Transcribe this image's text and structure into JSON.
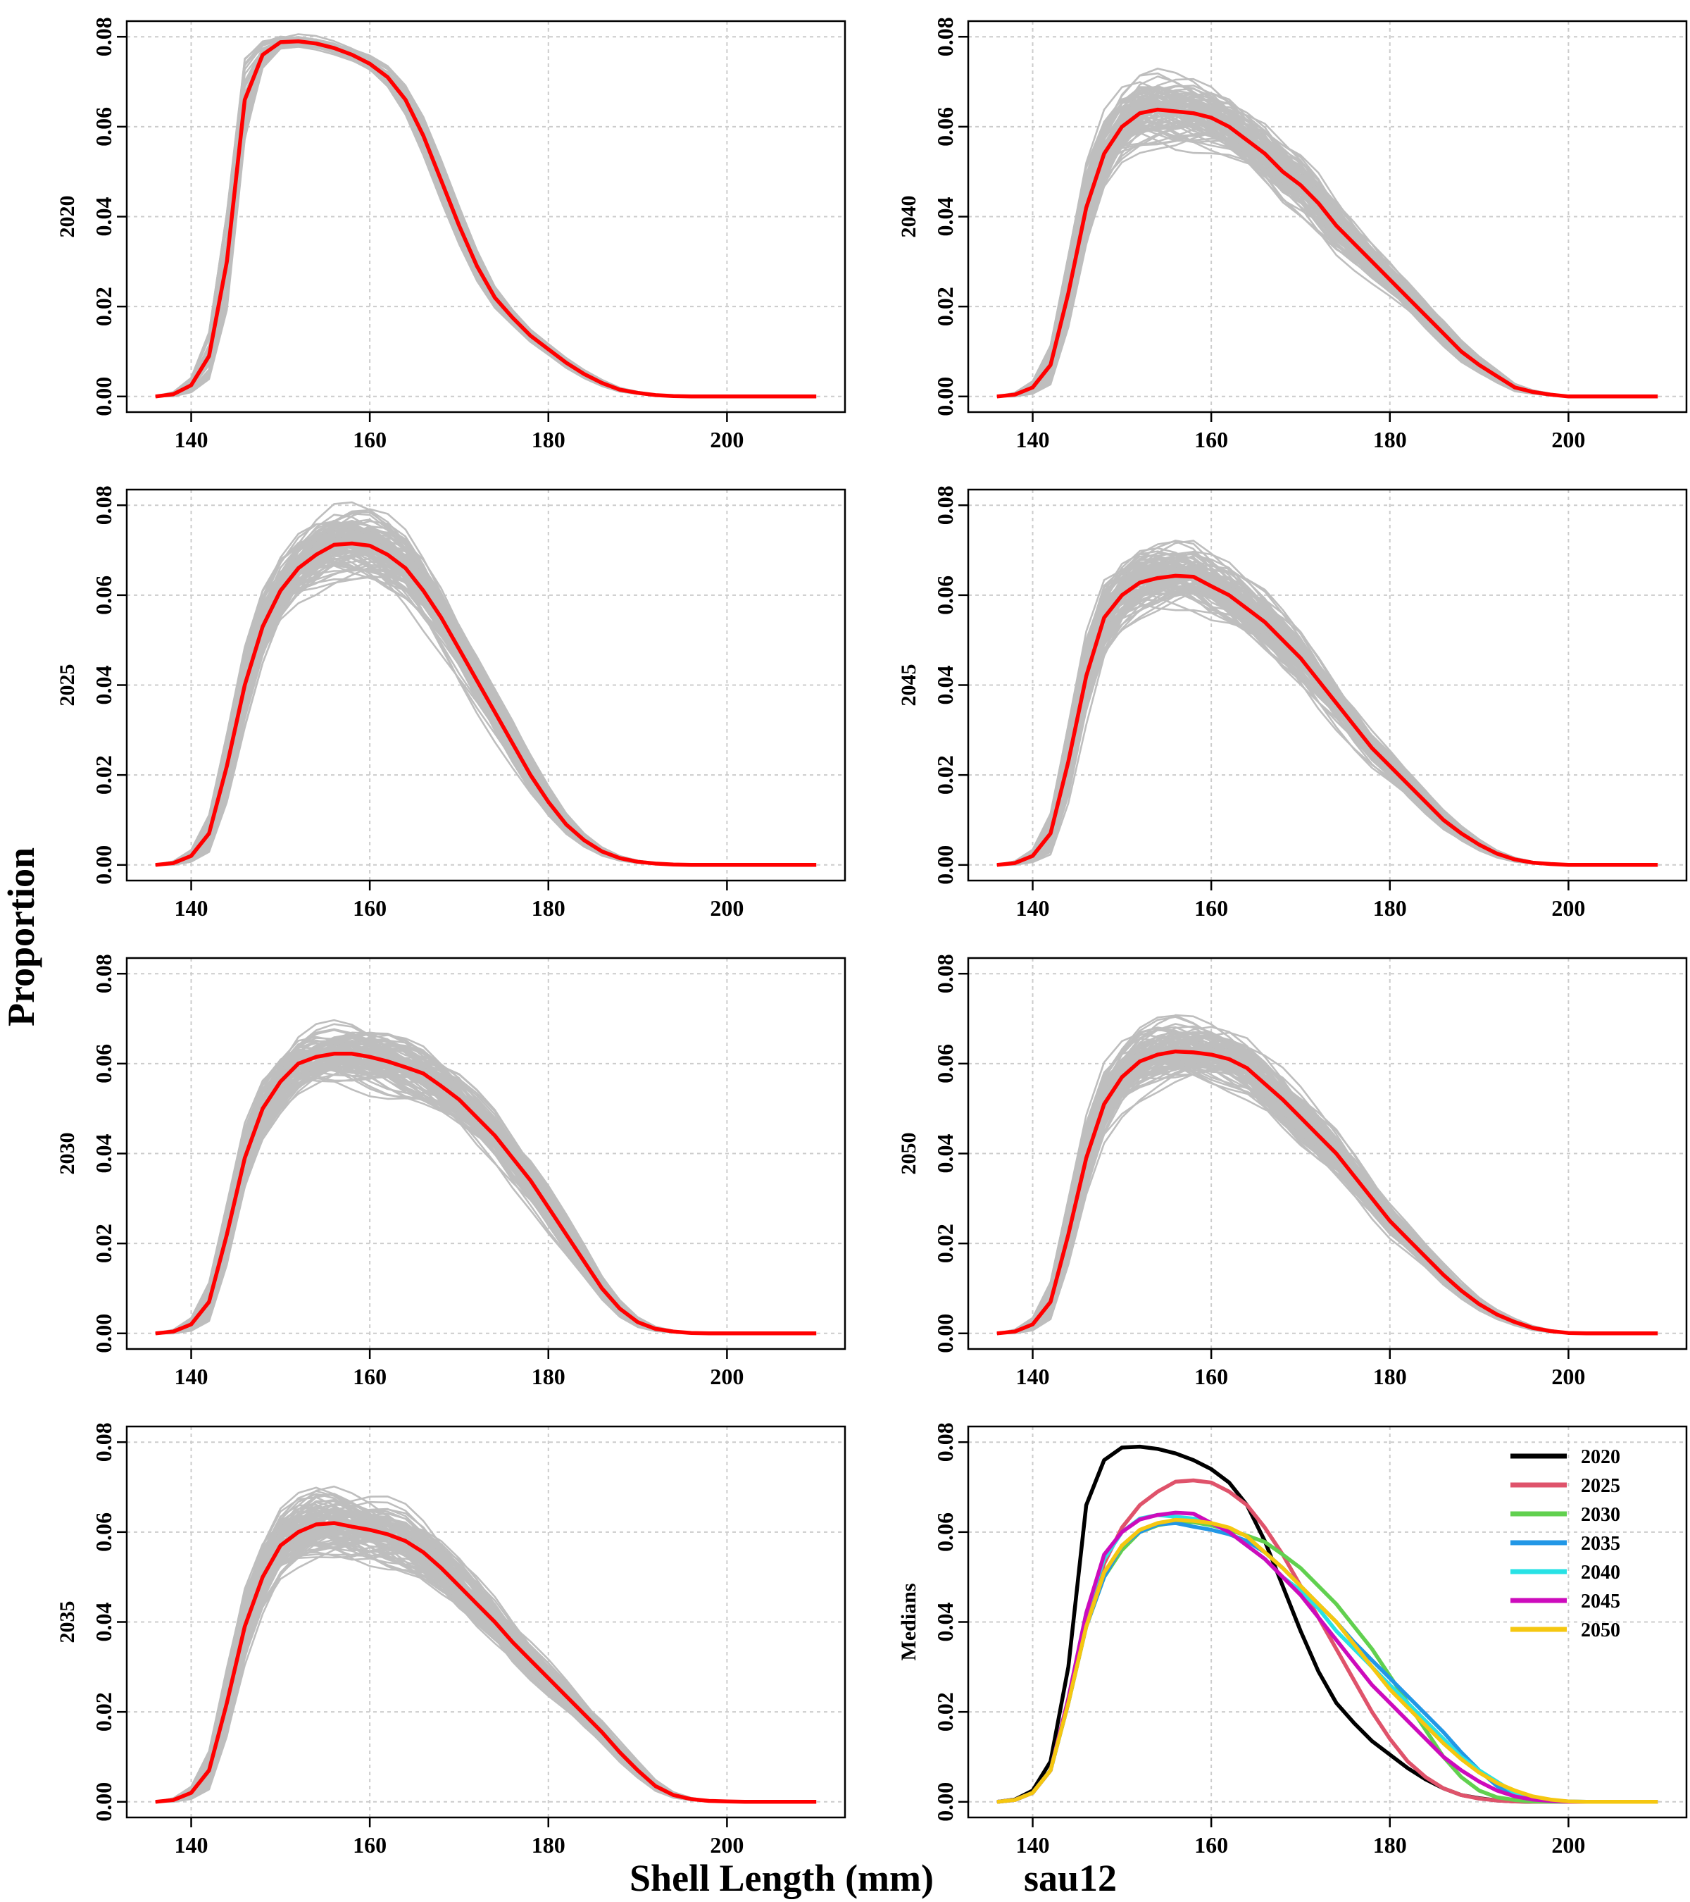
{
  "figure": {
    "y_axis_title": "Proportion",
    "x_axis_title": "Shell Length (mm)",
    "site_label": "sau12"
  },
  "chart_data": [
    {
      "type": "line",
      "title": "",
      "ylabel": "2020",
      "xlabel": "",
      "xlim": [
        136,
        210
      ],
      "ylim": [
        0,
        0.08
      ],
      "xticks": [
        140,
        160,
        180,
        200
      ],
      "yticks": [
        0,
        0.02,
        0.04,
        0.06,
        0.08
      ],
      "ytick_labels": [
        "0.00",
        "0.02",
        "0.04",
        "0.06",
        "0.08"
      ],
      "grid": true,
      "replicate_color": "#bebebe",
      "median_color": "#ff0000",
      "spread": 0.0015,
      "n_replicates": 40,
      "seed": 11,
      "median": {
        "x": [
          136,
          138,
          140,
          142,
          144,
          146,
          148,
          150,
          152,
          154,
          156,
          158,
          160,
          162,
          164,
          166,
          168,
          170,
          172,
          174,
          176,
          178,
          180,
          182,
          184,
          186,
          188,
          190,
          192,
          194,
          196,
          198,
          200,
          202,
          204,
          206,
          208,
          210
        ],
        "y": [
          0,
          0.0005,
          0.0025,
          0.009,
          0.03,
          0.066,
          0.076,
          0.0788,
          0.079,
          0.0785,
          0.0775,
          0.076,
          0.074,
          0.071,
          0.066,
          0.058,
          0.048,
          0.038,
          0.029,
          0.022,
          0.0175,
          0.0135,
          0.0105,
          0.0075,
          0.005,
          0.003,
          0.0015,
          0.0008,
          0.0003,
          0.0001,
          0,
          0,
          0,
          0,
          0,
          0,
          0,
          0
        ]
      }
    },
    {
      "type": "line",
      "title": "",
      "ylabel": "2040",
      "xlabel": "",
      "xlim": [
        136,
        210
      ],
      "ylim": [
        0,
        0.08
      ],
      "xticks": [
        140,
        160,
        180,
        200
      ],
      "yticks": [
        0,
        0.02,
        0.04,
        0.06,
        0.08
      ],
      "ytick_labels": [
        "0.00",
        "0.02",
        "0.04",
        "0.06",
        "0.08"
      ],
      "grid": true,
      "replicate_color": "#bebebe",
      "median_color": "#ff0000",
      "spread": 0.009,
      "n_replicates": 100,
      "seed": 21,
      "median": {
        "x": [
          136,
          138,
          140,
          142,
          144,
          146,
          148,
          150,
          152,
          154,
          156,
          158,
          160,
          162,
          164,
          166,
          168,
          170,
          172,
          174,
          176,
          178,
          180,
          182,
          184,
          186,
          188,
          190,
          192,
          194,
          196,
          198,
          200,
          202,
          204,
          206,
          208,
          210
        ],
        "y": [
          0,
          0.0004,
          0.002,
          0.007,
          0.023,
          0.042,
          0.054,
          0.06,
          0.063,
          0.0638,
          0.0634,
          0.063,
          0.062,
          0.06,
          0.057,
          0.054,
          0.05,
          0.047,
          0.043,
          0.038,
          0.034,
          0.03,
          0.026,
          0.022,
          0.018,
          0.014,
          0.01,
          0.007,
          0.0045,
          0.002,
          0.001,
          0.0004,
          0,
          0,
          0,
          0,
          0,
          0
        ]
      }
    },
    {
      "type": "line",
      "title": "",
      "ylabel": "2025",
      "xlabel": "",
      "xlim": [
        136,
        210
      ],
      "ylim": [
        0,
        0.08
      ],
      "xticks": [
        140,
        160,
        180,
        200
      ],
      "yticks": [
        0,
        0.02,
        0.04,
        0.06,
        0.08
      ],
      "ytick_labels": [
        "0.00",
        "0.02",
        "0.04",
        "0.06",
        "0.08"
      ],
      "grid": true,
      "replicate_color": "#bebebe",
      "median_color": "#ff0000",
      "spread": 0.008,
      "n_replicates": 100,
      "seed": 31,
      "median": {
        "x": [
          136,
          138,
          140,
          142,
          144,
          146,
          148,
          150,
          152,
          154,
          156,
          158,
          160,
          162,
          164,
          166,
          168,
          170,
          172,
          174,
          176,
          178,
          180,
          182,
          184,
          186,
          188,
          190,
          192,
          194,
          196,
          198,
          200,
          202,
          204,
          206,
          208,
          210
        ],
        "y": [
          0,
          0.0004,
          0.002,
          0.007,
          0.022,
          0.04,
          0.053,
          0.061,
          0.066,
          0.069,
          0.0712,
          0.0715,
          0.071,
          0.069,
          0.066,
          0.061,
          0.055,
          0.048,
          0.041,
          0.034,
          0.027,
          0.02,
          0.014,
          0.009,
          0.0055,
          0.003,
          0.0015,
          0.0007,
          0.0003,
          0.0001,
          0,
          0,
          0,
          0,
          0,
          0,
          0,
          0
        ]
      }
    },
    {
      "type": "line",
      "title": "",
      "ylabel": "2045",
      "xlabel": "",
      "xlim": [
        136,
        210
      ],
      "ylim": [
        0,
        0.08
      ],
      "xticks": [
        140,
        160,
        180,
        200
      ],
      "yticks": [
        0,
        0.02,
        0.04,
        0.06,
        0.08
      ],
      "ytick_labels": [
        "0.00",
        "0.02",
        "0.04",
        "0.06",
        "0.08"
      ],
      "grid": true,
      "replicate_color": "#bebebe",
      "median_color": "#ff0000",
      "spread": 0.0085,
      "n_replicates": 100,
      "seed": 41,
      "median": {
        "x": [
          136,
          138,
          140,
          142,
          144,
          146,
          148,
          150,
          152,
          154,
          156,
          158,
          160,
          162,
          164,
          166,
          168,
          170,
          172,
          174,
          176,
          178,
          180,
          182,
          184,
          186,
          188,
          190,
          192,
          194,
          196,
          198,
          200,
          202,
          204,
          206,
          208,
          210
        ],
        "y": [
          0,
          0.0004,
          0.002,
          0.007,
          0.023,
          0.042,
          0.055,
          0.06,
          0.0628,
          0.0638,
          0.0643,
          0.0641,
          0.062,
          0.06,
          0.057,
          0.054,
          0.05,
          0.046,
          0.041,
          0.036,
          0.031,
          0.026,
          0.022,
          0.018,
          0.014,
          0.01,
          0.007,
          0.0045,
          0.0025,
          0.0012,
          0.0005,
          0.0002,
          0,
          0,
          0,
          0,
          0,
          0
        ]
      }
    },
    {
      "type": "line",
      "title": "",
      "ylabel": "2030",
      "xlabel": "",
      "xlim": [
        136,
        210
      ],
      "ylim": [
        0,
        0.08
      ],
      "xticks": [
        140,
        160,
        180,
        200
      ],
      "yticks": [
        0,
        0.02,
        0.04,
        0.06,
        0.08
      ],
      "ytick_labels": [
        "0.00",
        "0.02",
        "0.04",
        "0.06",
        "0.08"
      ],
      "grid": true,
      "replicate_color": "#bebebe",
      "median_color": "#ff0000",
      "spread": 0.008,
      "n_replicates": 100,
      "seed": 51,
      "median": {
        "x": [
          136,
          138,
          140,
          142,
          144,
          146,
          148,
          150,
          152,
          154,
          156,
          158,
          160,
          162,
          164,
          166,
          168,
          170,
          172,
          174,
          176,
          178,
          180,
          182,
          184,
          186,
          188,
          190,
          192,
          194,
          196,
          198,
          200,
          202,
          204,
          206,
          208,
          210
        ],
        "y": [
          0,
          0.0004,
          0.002,
          0.007,
          0.022,
          0.039,
          0.05,
          0.056,
          0.06,
          0.0615,
          0.0622,
          0.0622,
          0.0615,
          0.0605,
          0.0592,
          0.0578,
          0.055,
          0.052,
          0.048,
          0.044,
          0.039,
          0.034,
          0.028,
          0.022,
          0.016,
          0.01,
          0.0055,
          0.0025,
          0.001,
          0.0004,
          0.0001,
          0,
          0,
          0,
          0,
          0,
          0,
          0
        ]
      }
    },
    {
      "type": "line",
      "title": "",
      "ylabel": "2050",
      "xlabel": "",
      "xlim": [
        136,
        210
      ],
      "ylim": [
        0,
        0.08
      ],
      "xticks": [
        140,
        160,
        180,
        200
      ],
      "yticks": [
        0,
        0.02,
        0.04,
        0.06,
        0.08
      ],
      "ytick_labels": [
        "0.00",
        "0.02",
        "0.04",
        "0.06",
        "0.08"
      ],
      "grid": true,
      "replicate_color": "#bebebe",
      "median_color": "#ff0000",
      "spread": 0.0085,
      "n_replicates": 100,
      "seed": 61,
      "median": {
        "x": [
          136,
          138,
          140,
          142,
          144,
          146,
          148,
          150,
          152,
          154,
          156,
          158,
          160,
          162,
          164,
          166,
          168,
          170,
          172,
          174,
          176,
          178,
          180,
          182,
          184,
          186,
          188,
          190,
          192,
          194,
          196,
          198,
          200,
          202,
          204,
          206,
          208,
          210
        ],
        "y": [
          0,
          0.0004,
          0.002,
          0.007,
          0.022,
          0.039,
          0.051,
          0.057,
          0.0605,
          0.062,
          0.0627,
          0.0625,
          0.062,
          0.061,
          0.059,
          0.0555,
          0.052,
          0.048,
          0.044,
          0.04,
          0.035,
          0.03,
          0.025,
          0.021,
          0.017,
          0.013,
          0.0095,
          0.0065,
          0.0042,
          0.0025,
          0.0012,
          0.0005,
          0.0001,
          0,
          0,
          0,
          0,
          0
        ]
      }
    },
    {
      "type": "line",
      "title": "",
      "ylabel": "2035",
      "xlabel": "",
      "xlim": [
        136,
        210
      ],
      "ylim": [
        0,
        0.08
      ],
      "xticks": [
        140,
        160,
        180,
        200
      ],
      "yticks": [
        0,
        0.02,
        0.04,
        0.06,
        0.08
      ],
      "ytick_labels": [
        "0.00",
        "0.02",
        "0.04",
        "0.06",
        "0.08"
      ],
      "grid": true,
      "replicate_color": "#bebebe",
      "median_color": "#ff0000",
      "spread": 0.0085,
      "n_replicates": 100,
      "seed": 71,
      "median": {
        "x": [
          136,
          138,
          140,
          142,
          144,
          146,
          148,
          150,
          152,
          154,
          156,
          158,
          160,
          162,
          164,
          166,
          168,
          170,
          172,
          174,
          176,
          178,
          180,
          182,
          184,
          186,
          188,
          190,
          192,
          194,
          196,
          198,
          200,
          202,
          204,
          206,
          208,
          210
        ],
        "y": [
          0,
          0.0004,
          0.002,
          0.007,
          0.022,
          0.039,
          0.05,
          0.057,
          0.06,
          0.0617,
          0.062,
          0.0612,
          0.0605,
          0.0595,
          0.058,
          0.0555,
          0.052,
          0.048,
          0.044,
          0.04,
          0.0355,
          0.0315,
          0.0275,
          0.0235,
          0.0195,
          0.0155,
          0.011,
          0.007,
          0.0035,
          0.0015,
          0.0006,
          0.0002,
          0.0001,
          0,
          0,
          0,
          0,
          0
        ]
      }
    },
    {
      "type": "line",
      "title": "",
      "ylabel": "Medians",
      "xlabel": "",
      "xlim": [
        136,
        210
      ],
      "ylim": [
        0,
        0.08
      ],
      "xticks": [
        140,
        160,
        180,
        200
      ],
      "yticks": [
        0,
        0.02,
        0.04,
        0.06,
        0.08
      ],
      "ytick_labels": [
        "0.00",
        "0.02",
        "0.04",
        "0.06",
        "0.08"
      ],
      "grid": true,
      "legend": "top-right",
      "series": [
        {
          "name": "2020",
          "color": "#000000",
          "source_panel": 0
        },
        {
          "name": "2025",
          "color": "#df536b",
          "source_panel": 2
        },
        {
          "name": "2030",
          "color": "#61d04f",
          "source_panel": 4
        },
        {
          "name": "2035",
          "color": "#2297e6",
          "source_panel": 6
        },
        {
          "name": "2040",
          "color": "#28e2e5",
          "source_panel": 1
        },
        {
          "name": "2045",
          "color": "#cd0bbc",
          "source_panel": 3
        },
        {
          "name": "2050",
          "color": "#f5c710",
          "source_panel": 5
        }
      ]
    }
  ]
}
